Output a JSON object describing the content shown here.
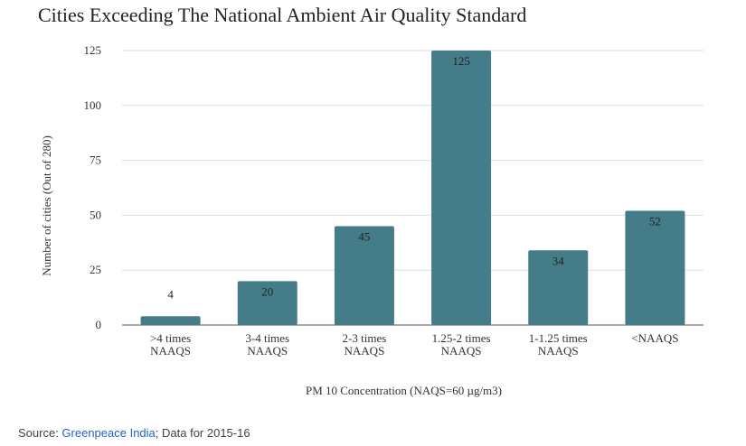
{
  "chart_data": {
    "type": "bar",
    "title": "Cities Exceeding The National Ambient Air Quality Standard",
    "xlabel": "PM 10 Concentration (NAQS=60 µg/m3)",
    "ylabel": "Number of cities (Out of 280)",
    "ylim": [
      0,
      125
    ],
    "yticks": [
      "0",
      "25",
      "50",
      "75",
      "100",
      "125"
    ],
    "categories": [
      [
        ">4 times",
        "NAAQS"
      ],
      [
        "3-4 times",
        "NAAQS"
      ],
      [
        "2-3 times",
        "NAAQS"
      ],
      [
        "1.25-2 times",
        "NAAQS"
      ],
      [
        "1-1.25 times",
        "NAAQS"
      ],
      [
        "<NAAQS"
      ]
    ],
    "values": [
      4,
      20,
      45,
      125,
      34,
      52
    ],
    "bar_color": "#447c8a",
    "grid": true,
    "legend": "none"
  },
  "source": {
    "prefix": "Source: ",
    "link_text": "Greenpeace India",
    "suffix": "; Data for 2015-16"
  }
}
